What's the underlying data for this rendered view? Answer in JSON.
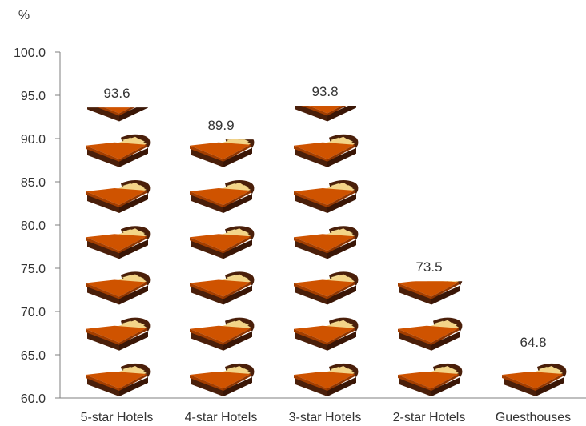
{
  "chart_data": {
    "type": "bar",
    "style": "pictograph-bed-icons",
    "title": "",
    "xlabel": "",
    "ylabel": "%",
    "ylim": [
      60.0,
      100.0
    ],
    "yticks": [
      "60.0",
      "65.0",
      "70.0",
      "75.0",
      "80.0",
      "85.0",
      "90.0",
      "95.0",
      "100.0"
    ],
    "categories": [
      "5-star Hotels",
      "4-star Hotels",
      "3-star Hotels",
      "2-star Hotels",
      "Guesthouses"
    ],
    "values": [
      93.6,
      89.9,
      93.8,
      73.5,
      64.8
    ],
    "data_labels": [
      "93.6",
      "89.9",
      "93.8",
      "73.5",
      "64.8"
    ],
    "icon": "bed-icon",
    "grid": false,
    "colors": {
      "axis": "#7f7f7f",
      "text": "#333333",
      "bed_spread": "#cf5300",
      "bed_spread_dark": "#a33e00",
      "bed_frame": "#4a1f0a",
      "pillow": "#f6dfa0",
      "sheet": "#f3d488"
    }
  }
}
